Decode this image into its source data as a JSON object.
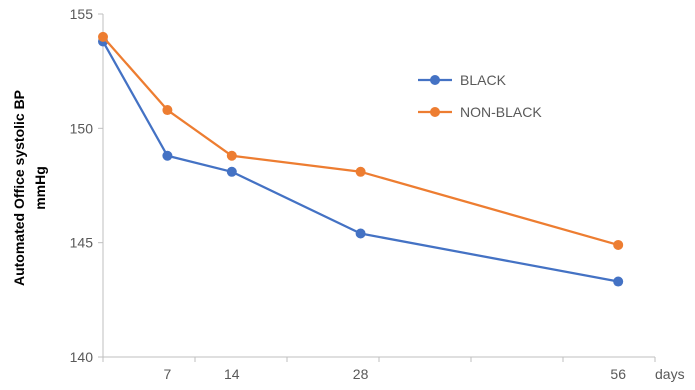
{
  "chart_data": {
    "type": "line",
    "title": "",
    "ylabel_lines": [
      "Automated Office systolic BP",
      "mmHg"
    ],
    "xlabel": "days",
    "ylim": [
      140,
      155
    ],
    "xlim": [
      0,
      60
    ],
    "yticks": [
      140,
      145,
      150,
      155
    ],
    "x_tick_labels": [
      {
        "x": 7,
        "label": "7"
      },
      {
        "x": 14,
        "label": "14"
      },
      {
        "x": 28,
        "label": "28"
      },
      {
        "x": 56,
        "label": "56"
      }
    ],
    "x_minor_ticks": [
      0,
      10,
      20,
      30,
      40,
      50,
      60
    ],
    "grid": false,
    "legend_position": "right",
    "series": [
      {
        "name": "BLACK",
        "color": "#4472C4",
        "x": [
          0,
          7,
          14,
          28,
          56
        ],
        "values": [
          153.8,
          148.8,
          148.1,
          145.4,
          143.3
        ]
      },
      {
        "name": "NON-BLACK",
        "color": "#ED7D31",
        "x": [
          0,
          7,
          14,
          28,
          56
        ],
        "values": [
          154.0,
          150.8,
          148.8,
          148.1,
          144.9
        ]
      }
    ]
  }
}
